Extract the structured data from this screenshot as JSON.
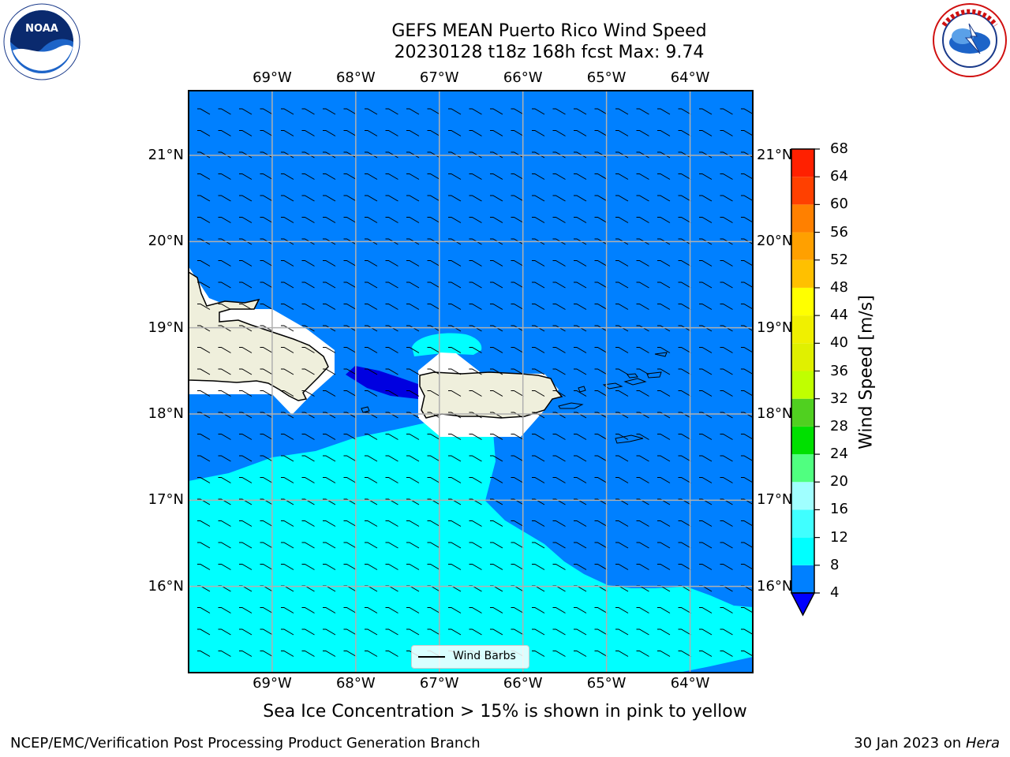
{
  "title": {
    "line1": "GEFS MEAN Puerto Rico Wind Speed",
    "line2": "20230128 t18z 168h fcst   Max: 9.74"
  },
  "map": {
    "lon_labels": [
      "69°W",
      "68°W",
      "67°W",
      "66°W",
      "65°W",
      "64°W"
    ],
    "lon_values": [
      -69,
      -68,
      -67,
      -66,
      -65,
      -64
    ],
    "lat_labels": [
      "21°N",
      "20°N",
      "19°N",
      "18°N",
      "17°N",
      "16°N"
    ],
    "lat_values": [
      21,
      20,
      19,
      18,
      17,
      16
    ],
    "lon_range": [
      -70,
      -63.25
    ],
    "lat_range": [
      15.0,
      21.75
    ],
    "gridlines": true,
    "colors": {
      "ocean_4_8": "#0080ff",
      "ocean_8_12": "#00ffff",
      "ocean_below_4": "#0000e0",
      "land": "#efefdc",
      "gap": "#ffffff"
    }
  },
  "legend": {
    "label": "Wind Barbs"
  },
  "colorbar": {
    "title": "Wind Speed [m/s]",
    "ticks": [
      "68",
      "64",
      "60",
      "56",
      "52",
      "48",
      "44",
      "40",
      "36",
      "32",
      "28",
      "24",
      "20",
      "16",
      "12",
      "8",
      "4"
    ],
    "bands": [
      {
        "from": 4,
        "to": 8,
        "color": "#0080ff"
      },
      {
        "from": 8,
        "to": 12,
        "color": "#00ffff"
      },
      {
        "from": 12,
        "to": 16,
        "color": "#40ffff"
      },
      {
        "from": 16,
        "to": 20,
        "color": "#a0ffff"
      },
      {
        "from": 20,
        "to": 24,
        "color": "#50ff80"
      },
      {
        "from": 24,
        "to": 28,
        "color": "#00e000"
      },
      {
        "from": 28,
        "to": 32,
        "color": "#50d020"
      },
      {
        "from": 32,
        "to": 36,
        "color": "#c0ff00"
      },
      {
        "from": 36,
        "to": 40,
        "color": "#e0f000"
      },
      {
        "from": 40,
        "to": 44,
        "color": "#f0f000"
      },
      {
        "from": 44,
        "to": 48,
        "color": "#ffff00"
      },
      {
        "from": 48,
        "to": 52,
        "color": "#ffc000"
      },
      {
        "from": 52,
        "to": 56,
        "color": "#ffa000"
      },
      {
        "from": 56,
        "to": 60,
        "color": "#ff8000"
      },
      {
        "from": 60,
        "to": 64,
        "color": "#ff4000"
      },
      {
        "from": 64,
        "to": 68,
        "color": "#ff2000"
      }
    ],
    "extend_below_color": "#0000ff"
  },
  "subtitle": "Sea Ice Concentration > 15% is shown in pink to yellow",
  "footer": {
    "left": "NCEP/EMC/Verification Post Processing Product Generation Branch",
    "right_prefix": "30 Jan 2023 on ",
    "right_machine": "Hera"
  },
  "logos": {
    "left": "noaa-logo-icon",
    "right": "nws-logo-icon"
  }
}
